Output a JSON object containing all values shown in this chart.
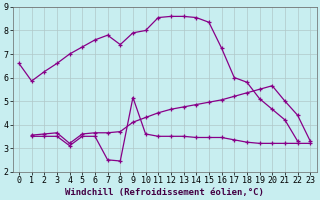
{
  "xlabel": "Windchill (Refroidissement éolien,°C)",
  "background_color": "#c8eef0",
  "line_color": "#880088",
  "grid_color": "#b0c8c8",
  "xlim": [
    -0.5,
    23.5
  ],
  "ylim": [
    2,
    9
  ],
  "xticks": [
    0,
    1,
    2,
    3,
    4,
    5,
    6,
    7,
    8,
    9,
    10,
    11,
    12,
    13,
    14,
    15,
    16,
    17,
    18,
    19,
    20,
    21,
    22,
    23
  ],
  "yticks": [
    2,
    3,
    4,
    5,
    6,
    7,
    8,
    9
  ],
  "line1_x": [
    0,
    1,
    2,
    3,
    4,
    5,
    6,
    7,
    8,
    9,
    10,
    11,
    12,
    13,
    14,
    15,
    16,
    17,
    18,
    19,
    20,
    21,
    22
  ],
  "line1_y": [
    6.6,
    5.85,
    6.25,
    6.6,
    7.0,
    7.3,
    7.6,
    7.8,
    7.4,
    7.9,
    8.0,
    8.55,
    8.6,
    8.6,
    8.55,
    8.35,
    7.25,
    6.0,
    5.8,
    5.1,
    4.65,
    4.2,
    3.3
  ],
  "line2_x": [
    1,
    2,
    3,
    4,
    5,
    6,
    7,
    8,
    9,
    10,
    11,
    12,
    13,
    14,
    15,
    16,
    17,
    18,
    19,
    20,
    21,
    22,
    23
  ],
  "line2_y": [
    3.5,
    3.5,
    3.5,
    3.1,
    3.5,
    3.5,
    2.5,
    2.45,
    5.15,
    3.6,
    3.5,
    3.5,
    3.5,
    3.45,
    3.45,
    3.45,
    3.35,
    3.25,
    3.2,
    3.2,
    3.2,
    3.2,
    3.2
  ],
  "line3_x": [
    1,
    2,
    3,
    4,
    5,
    6,
    7,
    8,
    9,
    10,
    11,
    12,
    13,
    14,
    15,
    16,
    17,
    18,
    19,
    20,
    21,
    22,
    23
  ],
  "line3_y": [
    3.55,
    3.6,
    3.65,
    3.2,
    3.6,
    3.65,
    3.65,
    3.7,
    4.1,
    4.3,
    4.5,
    4.65,
    4.75,
    4.85,
    4.95,
    5.05,
    5.2,
    5.35,
    5.5,
    5.65,
    5.0,
    4.4,
    3.3
  ],
  "fontsize_xlabel": 6.5,
  "fontsize_ticks": 6.0
}
